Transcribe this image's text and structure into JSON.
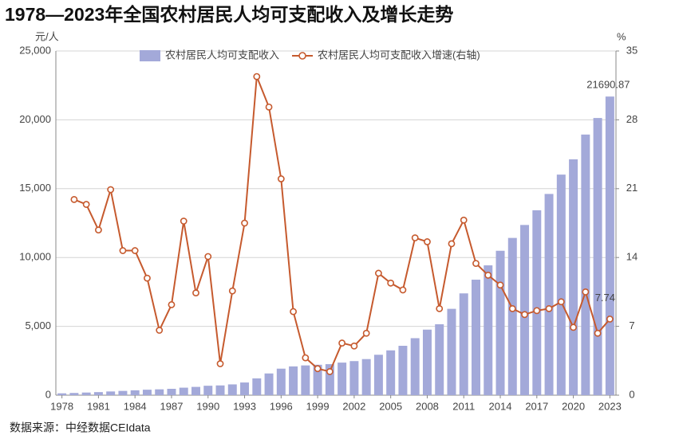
{
  "chart_data": {
    "type": "bar_line",
    "title": "1978—2023年全国农村居民人均可支配收入及增长走势",
    "y_label": "元/人",
    "y2_label": "%",
    "source": "数据来源：中经数据CEIdata",
    "categories": [
      "1978",
      null,
      null,
      "1981",
      null,
      null,
      "1984",
      null,
      null,
      "1987",
      null,
      null,
      "1990",
      null,
      null,
      "1993",
      null,
      null,
      "1996",
      null,
      null,
      "1999",
      null,
      null,
      "2002",
      null,
      null,
      "2005",
      null,
      null,
      "2008",
      null,
      null,
      "2011",
      null,
      null,
      "2014",
      null,
      null,
      "2017",
      null,
      null,
      "2020",
      null,
      null,
      "2023"
    ],
    "series": [
      {
        "name": "农村居民人均可支配收入",
        "type": "bar",
        "color": "#a3a9d9",
        "values": [
          134,
          160,
          191,
          223,
          270,
          310,
          355,
          398,
          424,
          463,
          545,
          602,
          686,
          709,
          784,
          922,
          1221,
          1578,
          1926,
          2090,
          2162,
          2210,
          2253,
          2366,
          2476,
          2622,
          2936,
          3255,
          3587,
          4140,
          4761,
          5153,
          6272,
          7394,
          8389,
          9430,
          10489,
          11422,
          12363,
          13432,
          14617,
          16021,
          17131,
          18931,
          20133,
          21690.87
        ],
        "value_labels": [
          null,
          null,
          null,
          null,
          null,
          null,
          null,
          null,
          null,
          null,
          null,
          null,
          null,
          null,
          null,
          null,
          null,
          null,
          null,
          null,
          null,
          null,
          null,
          null,
          null,
          null,
          null,
          null,
          null,
          null,
          null,
          null,
          null,
          null,
          null,
          null,
          null,
          null,
          null,
          null,
          null,
          null,
          null,
          null,
          null,
          "21690.87"
        ],
        "label_color": "#2e5d8a"
      },
      {
        "name": "农村居民人均可支配收入增速(右轴)",
        "type": "line",
        "axis": "y2",
        "color": "#c65a2e",
        "values": [
          null,
          19.9,
          19.4,
          16.8,
          20.9,
          14.7,
          14.7,
          11.9,
          6.6,
          9.2,
          17.7,
          10.4,
          14.1,
          3.2,
          10.6,
          17.5,
          32.4,
          29.3,
          22.0,
          8.5,
          3.8,
          2.7,
          2.4,
          5.3,
          5.0,
          6.3,
          12.4,
          11.4,
          10.7,
          16.0,
          15.6,
          8.8,
          15.4,
          17.8,
          13.4,
          12.2,
          11.2,
          8.8,
          8.2,
          8.6,
          8.8,
          9.5,
          6.9,
          10.5,
          6.3,
          7.74
        ],
        "value_labels": [
          null,
          null,
          null,
          null,
          null,
          null,
          null,
          null,
          null,
          null,
          null,
          null,
          null,
          null,
          null,
          null,
          null,
          null,
          null,
          null,
          null,
          null,
          null,
          null,
          null,
          null,
          null,
          null,
          null,
          null,
          null,
          null,
          null,
          null,
          null,
          null,
          null,
          null,
          null,
          null,
          null,
          null,
          null,
          null,
          null,
          "7.74"
        ],
        "label_color": "#333333"
      }
    ],
    "ylim": [
      0,
      25000
    ],
    "yticks": [
      0,
      {
        "value": 5000,
        "label": "5,000"
      },
      {
        "value": 10000,
        "label": "10,000"
      },
      {
        "value": 15000,
        "label": "15,000"
      },
      {
        "value": 20000,
        "label": "20,000"
      },
      {
        "value": 25000,
        "label": "25,000"
      }
    ],
    "y2lim": [
      0,
      35
    ],
    "y2ticks": [
      0,
      7,
      14,
      21,
      28,
      35
    ],
    "grid": true,
    "legend": "top"
  }
}
